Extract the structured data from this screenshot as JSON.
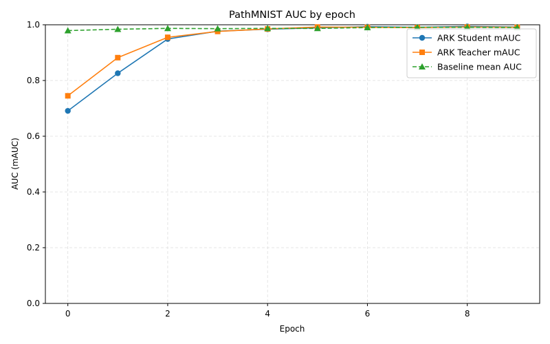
{
  "chart_data": {
    "type": "line",
    "title": "PathMNIST AUC by epoch",
    "xlabel": "Epoch",
    "ylabel": "AUC (mAUC)",
    "x": [
      0,
      1,
      2,
      3,
      4,
      5,
      6,
      7,
      8,
      9
    ],
    "xlim": [
      -0.45,
      9.45
    ],
    "ylim": [
      0.0,
      1.0
    ],
    "xticks": [
      0,
      2,
      4,
      6,
      8
    ],
    "yticks": [
      0.0,
      0.2,
      0.4,
      0.6,
      0.8,
      1.0
    ],
    "xtick_labels": [
      "0",
      "2",
      "4",
      "6",
      "8"
    ],
    "ytick_labels": [
      "0.0",
      "0.2",
      "0.4",
      "0.6",
      "0.8",
      "1.0"
    ],
    "grid": true,
    "legend_position": "top-right",
    "series": [
      {
        "name": "ARK Student mAUC",
        "color": "#1f77b4",
        "marker": "circle",
        "linestyle": "solid",
        "values": [
          0.691,
          0.826,
          0.949,
          0.977,
          0.984,
          0.989,
          0.993,
          0.991,
          0.994,
          0.992
        ]
      },
      {
        "name": "ARK Teacher mAUC",
        "color": "#ff7f0e",
        "marker": "square",
        "linestyle": "solid",
        "values": [
          0.745,
          0.882,
          0.955,
          0.976,
          0.985,
          0.992,
          0.991,
          0.99,
          0.992,
          0.991
        ]
      },
      {
        "name": "Baseline mean AUC",
        "color": "#2ca02c",
        "marker": "triangle",
        "linestyle": "dashed",
        "values": [
          0.979,
          0.984,
          0.987,
          0.986,
          0.987,
          0.987,
          0.99,
          0.991,
          0.991,
          0.99
        ]
      }
    ]
  }
}
